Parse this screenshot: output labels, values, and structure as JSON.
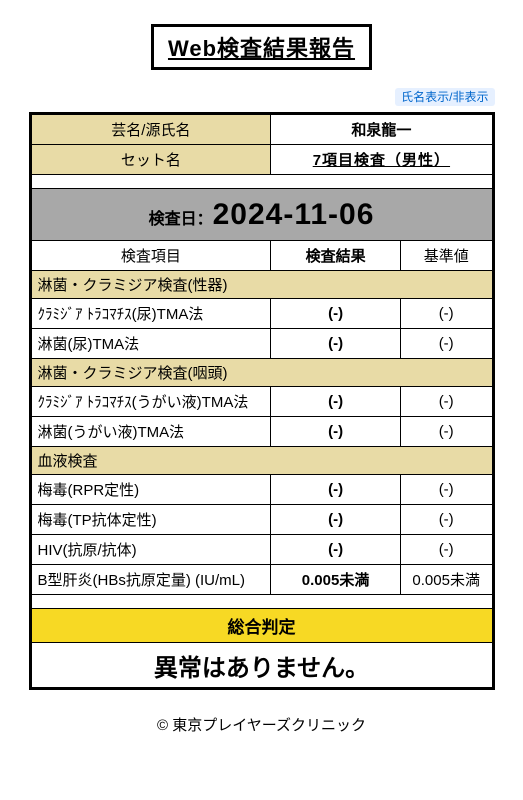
{
  "title": "Web検査結果報告",
  "toggle_label": "氏名表示/非表示",
  "headers": {
    "name_label": "芸名/源氏名",
    "name_value": "和泉龍一",
    "set_label": "セット名",
    "set_value": "7項目検査（男性）",
    "date_label": "検査日：",
    "date_value": "2024-11-06",
    "col_item": "検査項目",
    "col_result": "検査結果",
    "col_ref": "基準値"
  },
  "sections": [
    {
      "title": "淋菌・クラミジア検査(性器)",
      "rows": [
        {
          "name": "ｸﾗﾐｼﾞｱ ﾄﾗｺﾏﾁｽ(尿)TMA法",
          "result": "(-)",
          "ref": "(-)"
        },
        {
          "name": "淋菌(尿)TMA法",
          "result": "(-)",
          "ref": "(-)"
        }
      ]
    },
    {
      "title": "淋菌・クラミジア検査(咽頭)",
      "rows": [
        {
          "name": "ｸﾗﾐｼﾞｱ ﾄﾗｺﾏﾁｽ(うがい液)TMA法",
          "result": "(-)",
          "ref": "(-)"
        },
        {
          "name": "淋菌(うがい液)TMA法",
          "result": "(-)",
          "ref": "(-)"
        }
      ]
    },
    {
      "title": "血液検査",
      "rows": [
        {
          "name": "梅毒(RPR定性)",
          "result": "(-)",
          "ref": "(-)"
        },
        {
          "name": "梅毒(TP抗体定性)",
          "result": "(-)",
          "ref": "(-)"
        },
        {
          "name": "HIV(抗原/抗体)",
          "result": "(-)",
          "ref": "(-)"
        },
        {
          "name": "B型肝炎(HBs抗原定量) (IU/mL)",
          "result": "0.005未満",
          "ref": "0.005未満",
          "small": true
        }
      ]
    }
  ],
  "verdict_label": "総合判定",
  "verdict_value": "異常はありません。",
  "footer": "© 東京プレイヤーズクリニック",
  "colors": {
    "tan": "#e8dba6",
    "gray": "#a8a8a8",
    "yellow": "#f7d924",
    "link_bg": "#e6f0ff",
    "link_fg": "#0066cc",
    "border": "#000000",
    "bg": "#ffffff"
  }
}
